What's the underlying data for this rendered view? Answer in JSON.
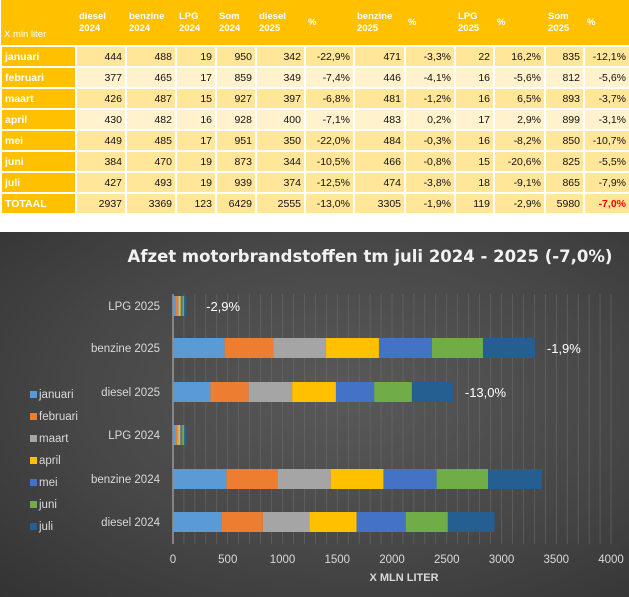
{
  "table": {
    "headers": [
      "X mln liter",
      "diesel 2024",
      "benzine 2024",
      "LPG 2024",
      "Som 2024",
      "diesel 2025",
      "%",
      "benzine 2025",
      "%",
      "LPG 2025",
      "%",
      "Som 2025",
      "%"
    ],
    "rows": [
      {
        "label": "januari",
        "shade": "dark",
        "cells": [
          "444",
          "488",
          "19",
          "950",
          "342",
          "-22,9%",
          "471",
          "-3,3%",
          "22",
          "16,2%",
          "835",
          "-12,1%"
        ]
      },
      {
        "label": "februari",
        "shade": "light",
        "cells": [
          "377",
          "465",
          "17",
          "859",
          "349",
          "-7,4%",
          "446",
          "-4,1%",
          "16",
          "-5,6%",
          "812",
          "-5,6%"
        ]
      },
      {
        "label": "maart",
        "shade": "dark",
        "cells": [
          "426",
          "487",
          "15",
          "927",
          "397",
          "-6,8%",
          "481",
          "-1,2%",
          "16",
          "6,5%",
          "893",
          "-3,7%"
        ]
      },
      {
        "label": "april",
        "shade": "light",
        "cells": [
          "430",
          "482",
          "16",
          "928",
          "400",
          "-7,1%",
          "483",
          "0,2%",
          "17",
          "2,9%",
          "899",
          "-3,1%"
        ]
      },
      {
        "label": "mei",
        "shade": "dark",
        "cells": [
          "449",
          "485",
          "17",
          "951",
          "350",
          "-22,0%",
          "484",
          "-0,3%",
          "16",
          "-8,2%",
          "850",
          "-10,7%"
        ]
      },
      {
        "label": "juni",
        "shade": "dark",
        "cells": [
          "384",
          "470",
          "19",
          "873",
          "344",
          "-10,5%",
          "466",
          "-0,8%",
          "15",
          "-20,6%",
          "825",
          "-5,5%"
        ]
      },
      {
        "label": "juli",
        "shade": "dark",
        "cells": [
          "427",
          "493",
          "19",
          "939",
          "374",
          "-12,5%",
          "474",
          "-3,8%",
          "18",
          "-9,1%",
          "865",
          "-7,9%"
        ]
      },
      {
        "label": "TOTAAL",
        "shade": "dark",
        "cells": [
          "2937",
          "3369",
          "123",
          "6429",
          "2555",
          "-13,0%",
          "3305",
          "-1,9%",
          "119",
          "-2,9%",
          "5980",
          "-7,0%"
        ]
      }
    ],
    "highlight_color": "#FF0000"
  },
  "chart_data": {
    "type": "bar",
    "orientation": "horizontal",
    "stacked": true,
    "title": "Afzet motorbrandstoffen tm juli 2024 - 2025 (-7,0%)",
    "xlabel": "X MLN LITER",
    "xlim": [
      0,
      4000
    ],
    "xticks": [
      "0",
      "500",
      "1000",
      "1500",
      "2000",
      "2500",
      "3000",
      "3500",
      "4000"
    ],
    "grid": true,
    "legend": "left",
    "categories": [
      "LPG 2025",
      "benzine 2025",
      "diesel 2025",
      "LPG 2024",
      "benzine 2024",
      "diesel 2024"
    ],
    "series": [
      {
        "name": "januari",
        "color": "#5B9BD5",
        "values": [
          22,
          471,
          342,
          19,
          488,
          444
        ]
      },
      {
        "name": "februari",
        "color": "#ED7D31",
        "values": [
          16,
          446,
          349,
          17,
          465,
          377
        ]
      },
      {
        "name": "maart",
        "color": "#A5A5A5",
        "values": [
          16,
          481,
          397,
          15,
          487,
          426
        ]
      },
      {
        "name": "april",
        "color": "#FFC000",
        "values": [
          17,
          483,
          400,
          16,
          482,
          430
        ]
      },
      {
        "name": "mei",
        "color": "#4472C4",
        "values": [
          16,
          484,
          350,
          17,
          485,
          449
        ]
      },
      {
        "name": "juni",
        "color": "#70AD47",
        "values": [
          15,
          466,
          344,
          19,
          470,
          384
        ]
      },
      {
        "name": "juli",
        "color": "#255E91",
        "values": [
          18,
          474,
          374,
          19,
          493,
          427
        ]
      }
    ],
    "annotations": [
      {
        "category": "LPG 2025",
        "text": "-2,9%"
      },
      {
        "category": "benzine 2025",
        "text": "-1,9%"
      },
      {
        "category": "diesel 2025",
        "text": "-13,0%"
      }
    ]
  }
}
